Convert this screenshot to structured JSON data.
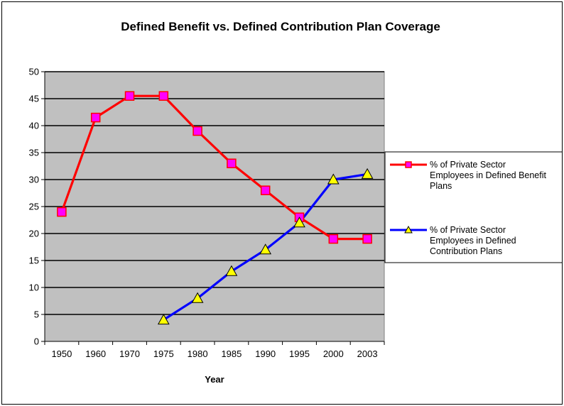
{
  "chart_data": {
    "type": "line",
    "title": "Defined Benefit vs. Defined Contribution Plan Coverage",
    "xlabel": "Year",
    "ylabel": "",
    "categories": [
      "1950",
      "1960",
      "1970",
      "1975",
      "1980",
      "1985",
      "1990",
      "1995",
      "2000",
      "2003"
    ],
    "ylim": [
      0,
      50
    ],
    "yticks": [
      "0",
      "5",
      "10",
      "15",
      "20",
      "25",
      "30",
      "35",
      "40",
      "45",
      "50"
    ],
    "grid": true,
    "plot_background": "#C0C0C0",
    "legend_position": "right",
    "series": [
      {
        "name": "% of Private Sector Employees in Defined Benefit Plans",
        "legend_lines": [
          "% of Private Sector",
          "Employees in Defined Benefit",
          "Plans"
        ],
        "color": "#FF0000",
        "marker": "square",
        "marker_fill": "#FF00FF",
        "values": [
          24,
          41.5,
          45.5,
          45.5,
          39,
          33,
          28,
          23,
          19,
          19
        ]
      },
      {
        "name": "% of Private Sector Employees in Defined Contribution Plans",
        "legend_lines": [
          "% of Private Sector",
          "Employees in Defined",
          "Contribution Plans"
        ],
        "color": "#0000FF",
        "marker": "triangle",
        "marker_fill": "#FFFF00",
        "values": [
          null,
          null,
          null,
          4,
          8,
          13,
          17,
          22,
          30,
          31
        ]
      }
    ]
  }
}
